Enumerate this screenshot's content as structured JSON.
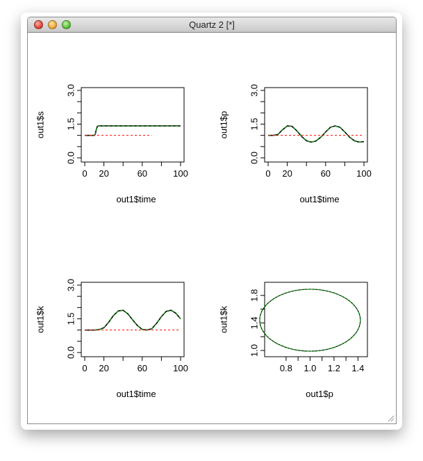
{
  "window": {
    "title": "Quartz 2 [*]",
    "buttons": {
      "close": "close-icon",
      "minimize": "minimize-icon",
      "zoom": "zoom-icon"
    }
  },
  "colors": {
    "sim_line": "#000000",
    "sim_overlay": "#00aa00",
    "reference": "#ff0000"
  },
  "chart_data": [
    {
      "type": "line",
      "xlabel": "out1$time",
      "ylabel": "out1$s",
      "xticks": [
        0,
        20,
        60,
        100
      ],
      "yticks": [
        "0.0",
        "1.5",
        "3.0"
      ],
      "ylim": [
        0,
        3
      ],
      "xlim": [
        0,
        100
      ],
      "series": [
        {
          "style": "solid-green-over-black",
          "x": [
            0,
            10,
            11,
            12,
            13,
            14,
            20,
            40,
            60,
            80,
            100
          ],
          "y": [
            1.0,
            1.0,
            1.05,
            1.25,
            1.38,
            1.42,
            1.42,
            1.42,
            1.42,
            1.42,
            1.42
          ]
        },
        {
          "style": "dashed-red",
          "x": [
            0,
            70
          ],
          "y": [
            1.0,
            1.0
          ]
        }
      ]
    },
    {
      "type": "line",
      "xlabel": "out1$time",
      "ylabel": "out1$p",
      "xticks": [
        0,
        20,
        60,
        100
      ],
      "yticks": [
        "0.0",
        "1.5",
        "3.0"
      ],
      "ylim": [
        0,
        3
      ],
      "xlim": [
        0,
        100
      ],
      "series": [
        {
          "style": "solid-green-over-black",
          "x": [
            0,
            5,
            10,
            15,
            20,
            25,
            30,
            35,
            40,
            45,
            50,
            55,
            60,
            65,
            70,
            75,
            80,
            85,
            90,
            95,
            100
          ],
          "y": [
            1.0,
            1.0,
            1.03,
            1.25,
            1.42,
            1.4,
            1.2,
            0.95,
            0.76,
            0.7,
            0.75,
            0.92,
            1.15,
            1.36,
            1.42,
            1.36,
            1.15,
            0.92,
            0.76,
            0.7,
            0.72
          ]
        },
        {
          "style": "dashed-red",
          "x": [
            0,
            100
          ],
          "y": [
            1.0,
            1.0
          ]
        }
      ]
    },
    {
      "type": "line",
      "xlabel": "out1$time",
      "ylabel": "out1$k",
      "xticks": [
        0,
        20,
        60,
        100
      ],
      "yticks": [
        "0.0",
        "1.5",
        "3.0"
      ],
      "ylim": [
        0,
        3
      ],
      "xlim": [
        0,
        100
      ],
      "series": [
        {
          "style": "solid-green-over-black",
          "x": [
            0,
            10,
            15,
            20,
            25,
            30,
            35,
            40,
            45,
            50,
            55,
            60,
            65,
            70,
            75,
            80,
            85,
            90,
            95,
            100
          ],
          "y": [
            1.0,
            1.0,
            1.02,
            1.1,
            1.35,
            1.65,
            1.85,
            1.88,
            1.72,
            1.45,
            1.2,
            1.03,
            1.0,
            1.06,
            1.3,
            1.6,
            1.83,
            1.88,
            1.75,
            1.5
          ]
        },
        {
          "style": "dashed-red",
          "x": [
            0,
            100
          ],
          "y": [
            1.0,
            1.0
          ]
        }
      ]
    },
    {
      "type": "line",
      "xlabel": "out1$p",
      "ylabel": "out1$k",
      "xticks": [
        "0.8",
        "1.0",
        "1.2",
        "1.4"
      ],
      "yticks": [
        "1.0",
        "1.4",
        "1.8"
      ],
      "xlim": [
        0.65,
        1.45
      ],
      "ylim": [
        0.95,
        1.95
      ],
      "series": [
        {
          "style": "phase-loop-green-over-black",
          "center": [
            1.0,
            1.44
          ],
          "rx": 0.42,
          "ry": 0.45
        }
      ]
    }
  ]
}
